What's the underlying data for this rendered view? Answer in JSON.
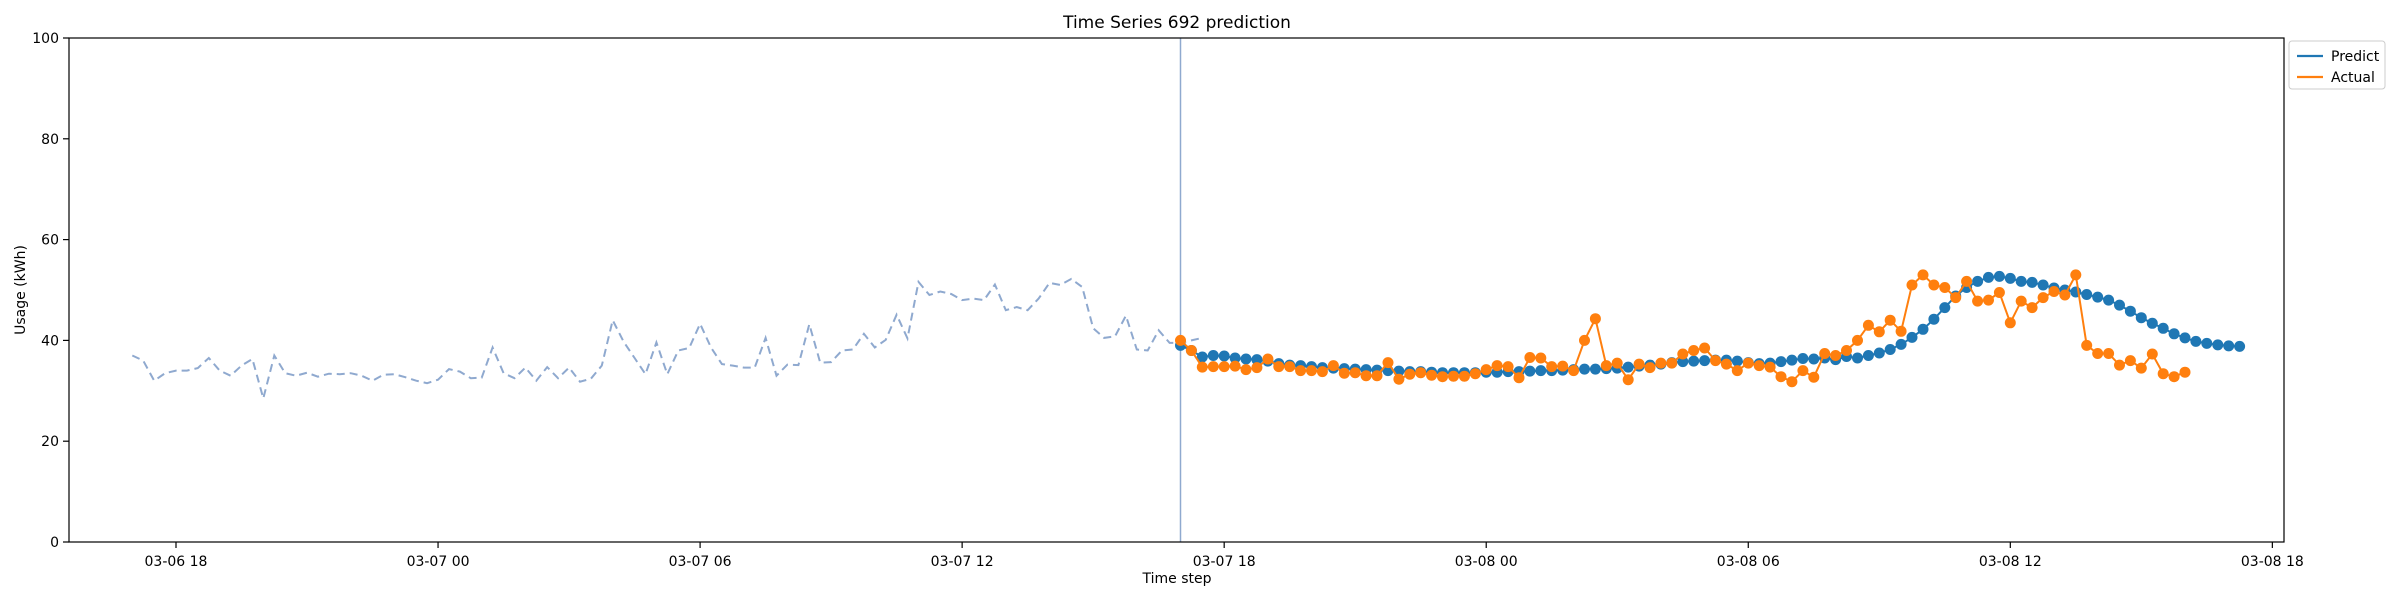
{
  "chart_data": {
    "type": "line",
    "title": "Time Series 692 prediction",
    "xlabel": "Time step",
    "ylabel": "Usage (kWh)",
    "ylim": [
      0,
      100
    ],
    "yticks": [
      0,
      20,
      40,
      60,
      80,
      100
    ],
    "xlim": [
      "03-06 15:33",
      "03-08 18:16"
    ],
    "xticks": [
      "03-06 18",
      "03-07 00",
      "03-07 06",
      "03-07 12",
      "03-07 18",
      "03-08 00",
      "03-08 06",
      "03-08 12",
      "03-08 18"
    ],
    "grid": false,
    "legend": {
      "placement": "upper-right-outside",
      "entries": [
        "Predict",
        "Actual"
      ]
    },
    "forecast_start": "03-07 17:00",
    "colors": {
      "predict": "#1f77b4",
      "actual": "#ff7f0e",
      "history": "#8fa9cf",
      "divider": "#8fa9cf"
    },
    "history": {
      "start": "03-06 17:00",
      "step_minutes": 15,
      "values": [
        37,
        36,
        32,
        33.5,
        34,
        34,
        34.5,
        36.5,
        34,
        33,
        35,
        36.3,
        28.5,
        37,
        33.5,
        33,
        33.6,
        32.8,
        33.4,
        33.3,
        33.5,
        33,
        32,
        33.2,
        33.3,
        32.7,
        32,
        31.5,
        32.2,
        34.3,
        33.8,
        32.5,
        32.6,
        38.6,
        33.5,
        32.5,
        34.6,
        32,
        34.7,
        32.5,
        34.6,
        31.8,
        32.4,
        35,
        44,
        39.7,
        36.5,
        33.3,
        39.6,
        33.3,
        38,
        38.5,
        43.3,
        38.6,
        35.3,
        35,
        34.6,
        34.6,
        40.5,
        33,
        35.2,
        35.1,
        43.2,
        35.6,
        35.7,
        38,
        38.2,
        41.3,
        38.6,
        40.1,
        45.1,
        40.4,
        51.6,
        49,
        49.7,
        49.2,
        48,
        48.3,
        48,
        51.1,
        46,
        46.6,
        46,
        48.3,
        51.4,
        51,
        52.2,
        50.6,
        42.4,
        40.5,
        40.8,
        44.9,
        38.2,
        38,
        42,
        39.5,
        39.5,
        40,
        40.5
      ]
    },
    "series": [
      {
        "name": "Predict",
        "start": "03-07 17:00",
        "step_minutes": 15,
        "values": [
          39,
          38,
          36.7,
          37,
          36.9,
          36.5,
          36.3,
          36.2,
          35.9,
          35.4,
          35.1,
          35,
          34.8,
          34.6,
          34.5,
          34.4,
          34.3,
          34.2,
          34.1,
          34,
          33.9,
          33.8,
          33.8,
          33.7,
          33.6,
          33.6,
          33.6,
          33.6,
          33.7,
          33.7,
          33.8,
          33.8,
          33.9,
          34,
          34,
          34.1,
          34.2,
          34.3,
          34.3,
          34.4,
          34.5,
          34.7,
          34.9,
          35.1,
          35.3,
          35.6,
          35.8,
          35.9,
          36,
          36.1,
          36.1,
          35.9,
          35.6,
          35.4,
          35.5,
          35.8,
          36.1,
          36.4,
          36.3,
          36.5,
          36.2,
          36.8,
          36.5,
          37,
          37.5,
          38.2,
          39.2,
          40.6,
          42.2,
          44.2,
          46.5,
          48.8,
          50.5,
          51.7,
          52.5,
          52.7,
          52.3,
          51.7,
          51.5,
          51,
          50.4,
          50,
          49.6,
          49.1,
          48.6,
          48,
          47,
          45.8,
          44.5,
          43.4,
          42.4,
          41.3,
          40.5,
          39.8,
          39.4,
          39.1,
          38.9,
          38.8
        ]
      },
      {
        "name": "Actual",
        "start": "03-07 17:00",
        "step_minutes": 15,
        "values": [
          40,
          38,
          34.7,
          34.8,
          34.8,
          34.9,
          34.2,
          34.6,
          36.3,
          34.8,
          34.8,
          34,
          34,
          33.8,
          35,
          33.5,
          33.6,
          33,
          33,
          35.6,
          32.3,
          33.3,
          33.6,
          33.1,
          32.8,
          32.9,
          32.9,
          33.4,
          34.2,
          35,
          34.8,
          32.6,
          36.6,
          36.5,
          34.8,
          34.9,
          34,
          40,
          44.3,
          35,
          35.5,
          32.2,
          35.3,
          34.6,
          35.5,
          35.5,
          37.3,
          38,
          38.5,
          36,
          35.3,
          34,
          35.5,
          35,
          34.7,
          32.8,
          31.8,
          34,
          32.7,
          37.4,
          37,
          38,
          40,
          43,
          41.7,
          44,
          41.8,
          51,
          53,
          51,
          50.5,
          48.5,
          51.7,
          47.8,
          48,
          49.5,
          43.5,
          47.8,
          46.5,
          48.5,
          49.7,
          49,
          53,
          39,
          37.4,
          37.4,
          35.1,
          36,
          34.5,
          37.3,
          33.4,
          32.8,
          33.7
        ]
      }
    ]
  }
}
